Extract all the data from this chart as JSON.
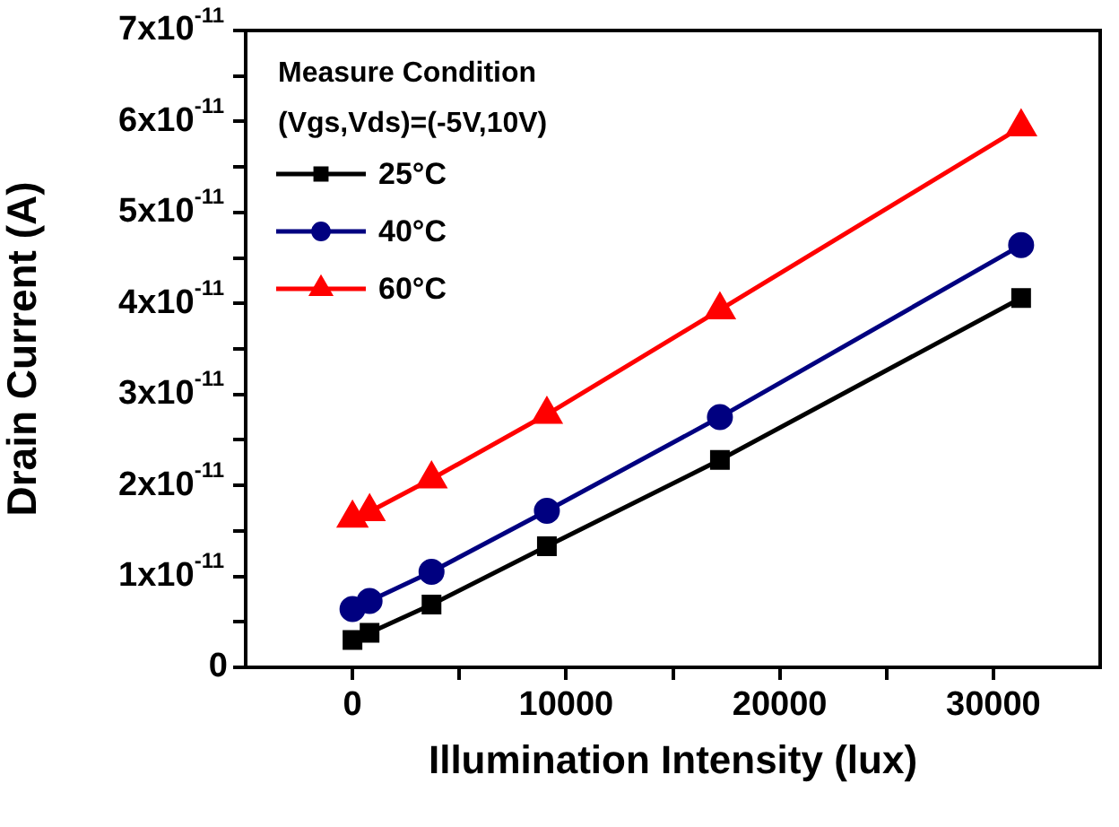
{
  "chart_data": {
    "type": "line",
    "xlabel": "Illumination Intensity (lux)",
    "ylabel": "Drain Current (A)",
    "legend_title": "Measure Condition\n(Vgs,Vds)=(-5V,10V)",
    "legend": "top left",
    "grid": false,
    "x": [
      0,
      800,
      3700,
      9100,
      17200,
      31300
    ],
    "series": [
      {
        "name": "25°C",
        "color": "#000000",
        "marker": "square",
        "values": [
          3e-12,
          3.8e-12,
          6.9e-12,
          1.33e-11,
          2.28e-11,
          4.06e-11
        ]
      },
      {
        "name": "40°C",
        "color": "#000080",
        "marker": "circle",
        "values": [
          6.4e-12,
          7.3e-12,
          1.05e-11,
          1.72e-11,
          2.75e-11,
          4.64e-11
        ]
      },
      {
        "name": "60°C",
        "color": "#ff0000",
        "marker": "triangle",
        "values": [
          1.64e-11,
          1.71e-11,
          2.07e-11,
          2.78e-11,
          3.93e-11,
          5.94e-11
        ]
      }
    ],
    "xlim": [
      -5000,
      35000
    ],
    "xticks": [
      0,
      {
        "value": 5000,
        "label": null
      },
      10000,
      {
        "value": 15000,
        "label": null
      },
      20000,
      {
        "value": 25000,
        "label": null
      },
      30000
    ],
    "ylim": [
      0,
      7e-11
    ],
    "yticks": [
      0,
      {
        "value": 5e-12,
        "label": null
      },
      {
        "value": 1e-11,
        "label": "1x10$^{-11}$"
      },
      {
        "value": 1.5e-11,
        "label": null
      },
      {
        "value": 2e-11,
        "label": "2x10$^{-11}$"
      },
      {
        "value": 2.5e-11,
        "label": null
      },
      {
        "value": 3e-11,
        "label": "3x10$^{-11}$"
      },
      {
        "value": 3.5e-11,
        "label": null
      },
      {
        "value": 4e-11,
        "label": "4x10$^{-11}$"
      },
      {
        "value": 4.5e-11,
        "label": null
      },
      {
        "value": 5e-11,
        "label": "5x10$^{-11}$"
      },
      {
        "value": 5.5e-11,
        "label": null
      },
      {
        "value": 6e-11,
        "label": "6x10$^{-11}$"
      },
      {
        "value": 6.5e-11,
        "label": null
      },
      {
        "value": 7e-11,
        "label": "7x10$^{-11}$"
      }
    ]
  }
}
